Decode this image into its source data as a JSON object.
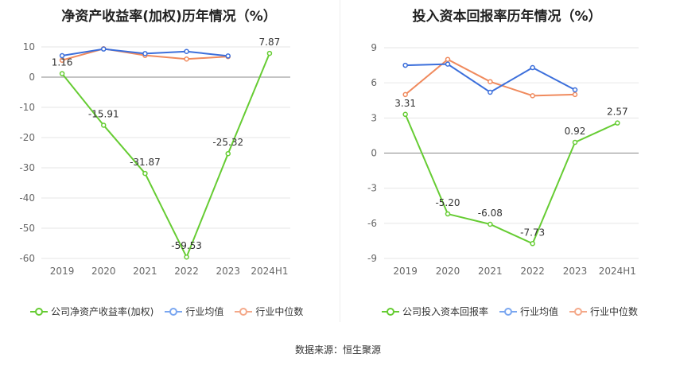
{
  "source_text": "数据来源：恒生聚源",
  "chart_data": [
    {
      "type": "line",
      "title": "净资产收益率(加权)历年情况（%）",
      "categories": [
        "2019",
        "2020",
        "2021",
        "2022",
        "2023",
        "2024H1"
      ],
      "ylim": [
        -60,
        10
      ],
      "yticks": [
        10,
        0,
        -10,
        -20,
        -30,
        -40,
        -50,
        -60
      ],
      "series": [
        {
          "name": "公司净资产收益率(加权)",
          "color": "#66cc33",
          "values": [
            1.16,
            -15.91,
            -31.87,
            -59.53,
            -25.32,
            7.87
          ],
          "labels": [
            "1.16",
            "-15.91",
            "-31.87",
            "-59.53",
            "-25.32",
            "7.87"
          ]
        },
        {
          "name": "行业均值",
          "color": "#3c6fdb",
          "values": [
            7.1,
            9.3,
            7.8,
            8.5,
            7.0,
            null
          ]
        },
        {
          "name": "行业中位数",
          "color": "#f08a5d",
          "values": [
            5.6,
            9.4,
            7.2,
            6.0,
            6.8,
            null
          ]
        }
      ],
      "legend": [
        {
          "label": "公司净资产收益率(加权)",
          "color": "#66cc33"
        },
        {
          "label": "行业均值",
          "color": "#7ba7f0"
        },
        {
          "label": "行业中位数",
          "color": "#f4a98a"
        }
      ]
    },
    {
      "type": "line",
      "title": "投入资本回报率历年情况（%）",
      "categories": [
        "2019",
        "2020",
        "2021",
        "2022",
        "2023",
        "2024H1"
      ],
      "ylim": [
        -9,
        9
      ],
      "yticks": [
        9,
        6,
        3,
        0,
        -3,
        -6,
        -9
      ],
      "series": [
        {
          "name": "公司投入资本回报率",
          "color": "#66cc33",
          "values": [
            3.31,
            -5.2,
            -6.08,
            -7.73,
            0.92,
            2.57
          ],
          "labels": [
            "3.31",
            "-5.20",
            "-6.08",
            "-7.73",
            "0.92",
            "2.57"
          ]
        },
        {
          "name": "行业均值",
          "color": "#3c6fdb",
          "values": [
            7.5,
            7.6,
            5.2,
            7.3,
            5.4,
            null
          ]
        },
        {
          "name": "行业中位数",
          "color": "#f08a5d",
          "values": [
            5.0,
            8.0,
            6.1,
            4.9,
            5.0,
            null
          ]
        }
      ],
      "legend": [
        {
          "label": "公司投入资本回报率",
          "color": "#66cc33"
        },
        {
          "label": "行业均值",
          "color": "#7ba7f0"
        },
        {
          "label": "行业中位数",
          "color": "#f4a98a"
        }
      ]
    }
  ]
}
